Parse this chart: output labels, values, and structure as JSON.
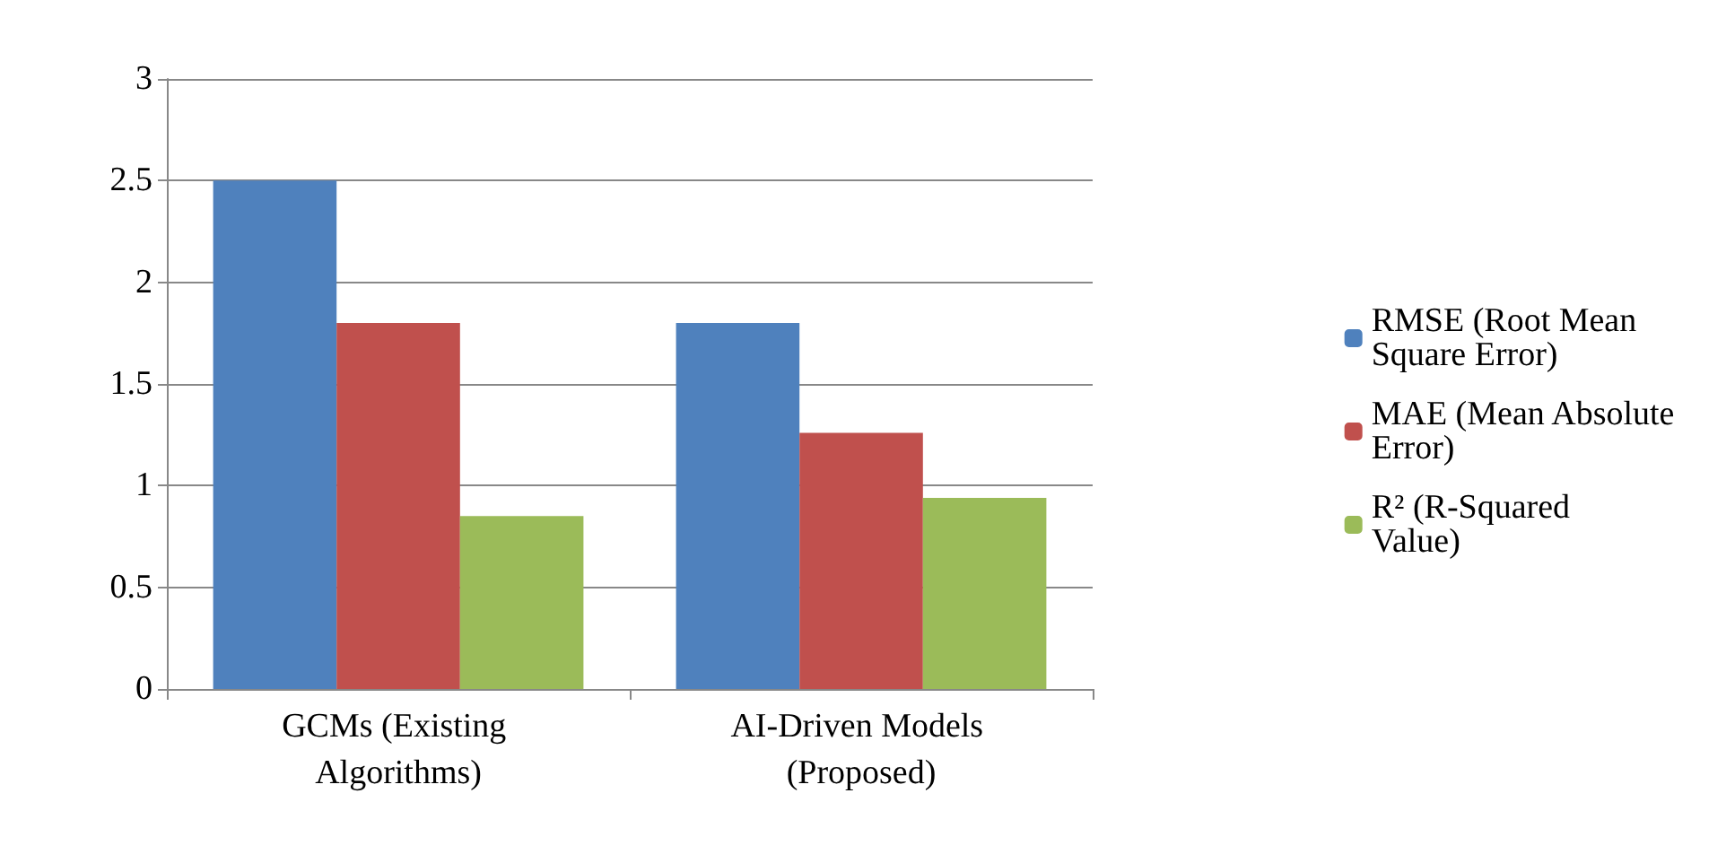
{
  "chart_data": {
    "type": "bar",
    "categories": [
      "GCMs (Existing Algorithms)",
      "AI-Driven Models (Proposed)"
    ],
    "series": [
      {
        "name": "RMSE (Root Mean Square Error)",
        "color": "#4f81bd",
        "values": [
          2.5,
          1.8
        ]
      },
      {
        "name": "MAE (Mean Absolute Error)",
        "color": "#c0504d",
        "values": [
          1.8,
          1.26
        ]
      },
      {
        "name": "R² (R-Squared Value)",
        "color": "#9bbb59",
        "values": [
          0.85,
          0.94
        ]
      }
    ],
    "ylim": [
      0,
      3
    ],
    "yticks": [
      0,
      0.5,
      1,
      1.5,
      2,
      2.5,
      3
    ],
    "grid": "y",
    "legend": "right"
  }
}
